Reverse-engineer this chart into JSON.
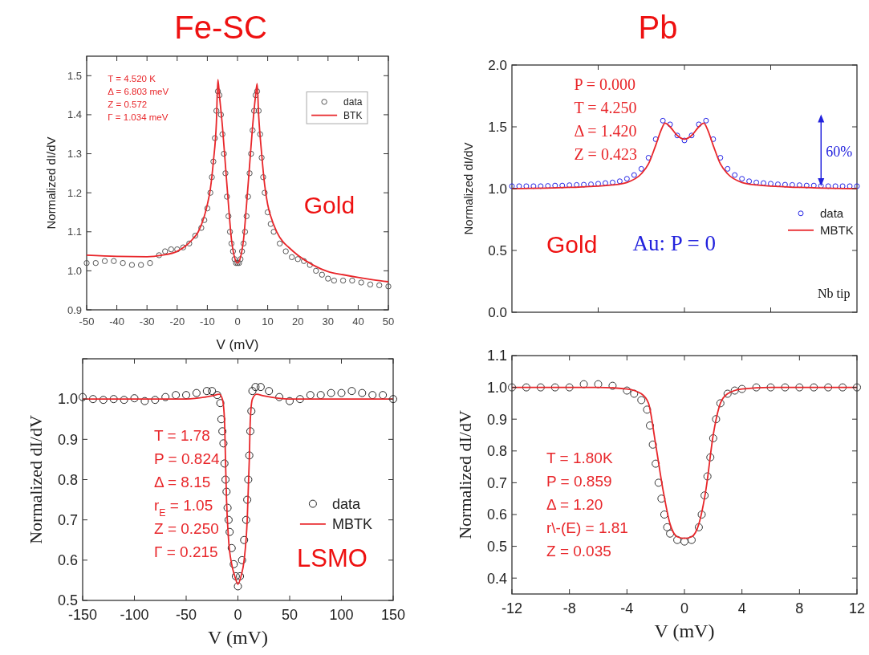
{
  "chart_data": [
    {
      "type": "scatter",
      "title": "Fe-SC",
      "xlabel": "V (mV)",
      "ylabel": "Normalized dI/dV",
      "xlim": [
        -50,
        50
      ],
      "ylim": [
        0.9,
        1.55
      ],
      "xticks": [
        -50,
        -40,
        -30,
        -20,
        -10,
        0,
        10,
        20,
        30,
        40,
        50
      ],
      "yticks": [
        0.9,
        {
          "value": 1,
          "label": "1.0"
        },
        1.1,
        1.2,
        1.3,
        1.4,
        1.5
      ],
      "legend": "top right",
      "annotations": [
        "T =   4.520 K\nΔ =   6.803 meV\nZ =   0.572\nΓ =   1.034 meV",
        "Gold"
      ],
      "series": [
        {
          "name": "data",
          "marker": "circle",
          "color": "#555555",
          "x": [
            -50,
            -47,
            -44,
            -41,
            -38,
            -35,
            -32,
            -29,
            -26,
            -24,
            -22,
            -20,
            -18,
            -16,
            -14,
            -12,
            -11,
            -10,
            -9,
            -8.5,
            -8,
            -7.5,
            -7,
            -6.5,
            -6,
            -5.5,
            -5,
            -4.5,
            -4,
            -3.5,
            -3,
            -2.5,
            -2,
            -1.5,
            -1,
            -0.5,
            0,
            0.5,
            1,
            1.5,
            2,
            2.5,
            3,
            3.5,
            4,
            4.5,
            5,
            5.5,
            6,
            6.5,
            7,
            7.5,
            8,
            8.5,
            9,
            10,
            11,
            12,
            14,
            16,
            18,
            20,
            22,
            24,
            26,
            28,
            30,
            32,
            35,
            38,
            41,
            44,
            47,
            50
          ],
          "values": [
            1.02,
            1.02,
            1.025,
            1.025,
            1.02,
            1.015,
            1.015,
            1.02,
            1.04,
            1.05,
            1.055,
            1.055,
            1.06,
            1.07,
            1.09,
            1.11,
            1.13,
            1.16,
            1.2,
            1.24,
            1.28,
            1.34,
            1.41,
            1.46,
            1.45,
            1.4,
            1.35,
            1.3,
            1.25,
            1.19,
            1.14,
            1.1,
            1.07,
            1.05,
            1.03,
            1.02,
            1.02,
            1.02,
            1.03,
            1.05,
            1.07,
            1.1,
            1.14,
            1.19,
            1.25,
            1.3,
            1.36,
            1.41,
            1.45,
            1.46,
            1.41,
            1.35,
            1.29,
            1.24,
            1.2,
            1.15,
            1.12,
            1.1,
            1.07,
            1.05,
            1.035,
            1.03,
            1.025,
            1.015,
            1.0,
            0.99,
            0.98,
            0.975,
            0.975,
            0.975,
            0.97,
            0.965,
            0.963,
            0.96
          ]
        },
        {
          "name": "BTK",
          "type": "line",
          "color": "#e8262a",
          "x": [
            -50,
            -40,
            -30,
            -25,
            -20,
            -17,
            -15,
            -13,
            -11,
            -10,
            -9,
            -8,
            -7,
            -6.5,
            -6,
            -5,
            -4,
            -3,
            -2,
            -1,
            0,
            1,
            2,
            3,
            4,
            5,
            6,
            6.5,
            7,
            8,
            9,
            10,
            11,
            13,
            15,
            17,
            20,
            25,
            30,
            35,
            40,
            45,
            50
          ],
          "values": [
            1.04,
            1.037,
            1.036,
            1.04,
            1.05,
            1.065,
            1.08,
            1.1,
            1.14,
            1.17,
            1.21,
            1.28,
            1.38,
            1.49,
            1.45,
            1.37,
            1.27,
            1.17,
            1.08,
            1.035,
            1.02,
            1.035,
            1.08,
            1.17,
            1.27,
            1.37,
            1.45,
            1.48,
            1.4,
            1.3,
            1.22,
            1.17,
            1.14,
            1.1,
            1.075,
            1.06,
            1.04,
            1.015,
            0.998,
            0.99,
            0.983,
            0.977,
            0.972
          ]
        }
      ]
    },
    {
      "type": "scatter",
      "title": "Pb",
      "ylabel": "Normalized dI/dV",
      "xlim": [
        -12,
        12
      ],
      "ylim": [
        0,
        2
      ],
      "xticks": [
        {
          "value": -6,
          "label": null
        },
        {
          "value": 0,
          "label": null
        },
        {
          "value": 6,
          "label": null
        }
      ],
      "yticks": [
        {
          "value": 0,
          "label": "0.0"
        },
        0.5,
        {
          "value": 1,
          "label": "1.0"
        },
        1.5,
        {
          "value": 2,
          "label": "2.0"
        }
      ],
      "tick_labels": "y",
      "legend": "right",
      "annotations": [
        "P = 0.000\nT = 4.250\nΔ = 1.420\nZ = 0.423",
        "Gold",
        "Au: P = 0",
        "Nb tip",
        "60%"
      ],
      "series": [
        {
          "name": "data",
          "marker": "circle",
          "color": "#2626e6",
          "x": [
            -12,
            -11.5,
            -11,
            -10.5,
            -10,
            -9.5,
            -9,
            -8.5,
            -8,
            -7.5,
            -7,
            -6.5,
            -6,
            -5.5,
            -5,
            -4.5,
            -4,
            -3.5,
            -3,
            -2.5,
            -2,
            -1.5,
            -1,
            -0.5,
            0,
            0.5,
            1,
            1.5,
            2,
            2.5,
            3,
            3.5,
            4,
            4.5,
            5,
            5.5,
            6,
            6.5,
            7,
            7.5,
            8,
            8.5,
            9,
            9.5,
            10,
            10.5,
            11,
            11.5,
            12
          ],
          "values": [
            1.02,
            1.02,
            1.02,
            1.02,
            1.02,
            1.022,
            1.025,
            1.025,
            1.028,
            1.03,
            1.032,
            1.035,
            1.04,
            1.045,
            1.05,
            1.06,
            1.08,
            1.11,
            1.16,
            1.25,
            1.4,
            1.55,
            1.52,
            1.43,
            1.39,
            1.43,
            1.52,
            1.55,
            1.4,
            1.25,
            1.16,
            1.11,
            1.08,
            1.06,
            1.05,
            1.045,
            1.04,
            1.035,
            1.032,
            1.03,
            1.028,
            1.025,
            1.025,
            1.022,
            1.02,
            1.02,
            1.02,
            1.02,
            1.02
          ]
        },
        {
          "name": "MBTK",
          "type": "line",
          "color": "#e8262a",
          "x": [
            -12,
            -8,
            -5,
            -4,
            -3,
            -2.5,
            -2,
            -1.6,
            -1.35,
            -1,
            -0.5,
            0,
            0.5,
            1,
            1.35,
            1.6,
            2,
            2.5,
            3,
            4,
            5,
            8,
            12
          ],
          "values": [
            1.0,
            1.01,
            1.03,
            1.05,
            1.12,
            1.2,
            1.35,
            1.48,
            1.53,
            1.5,
            1.43,
            1.4,
            1.43,
            1.5,
            1.53,
            1.48,
            1.35,
            1.2,
            1.12,
            1.05,
            1.03,
            1.01,
            1.0
          ]
        }
      ]
    },
    {
      "type": "scatter",
      "xlabel": "V (mV)",
      "ylabel": "Normalized dI/dV",
      "xlim": [
        -150,
        150
      ],
      "ylim": [
        0.5,
        1.1
      ],
      "xticks": [
        -150,
        -100,
        -50,
        0,
        50,
        100,
        150
      ],
      "yticks": [
        0.5,
        0.6,
        0.7,
        0.8,
        0.9,
        {
          "value": 1,
          "label": "1.0"
        },
        {
          "value": 1.1,
          "label": null
        }
      ],
      "legend": "right",
      "annotations": [
        "T = 1.78\nP = 0.824\nΔ = 8.15\nr$_{E}$ = 1.05\nZ = 0.250\nΓ = 0.215",
        "LSMO"
      ],
      "series": [
        {
          "name": "data",
          "marker": "circle",
          "color": "#222222",
          "x": [
            -150,
            -140,
            -130,
            -120,
            -110,
            -100,
            -90,
            -80,
            -70,
            -60,
            -50,
            -40,
            -30,
            -25,
            -20,
            -17,
            -16,
            -15,
            -14,
            -13,
            -12,
            -11,
            -10,
            -9,
            -8,
            -6,
            -4,
            -2,
            0,
            2,
            4,
            6,
            8,
            9,
            10,
            11,
            12,
            13,
            14,
            17,
            22,
            30,
            40,
            50,
            60,
            70,
            80,
            90,
            100,
            110,
            120,
            130,
            140,
            150
          ],
          "values": [
            1.005,
            1.0,
            0.998,
            1.0,
            0.998,
            1.002,
            0.995,
            0.998,
            1.005,
            1.01,
            1.01,
            1.015,
            1.02,
            1.02,
            1.01,
            0.99,
            0.95,
            0.92,
            0.89,
            0.84,
            0.8,
            0.77,
            0.73,
            0.7,
            0.67,
            0.63,
            0.59,
            0.56,
            0.535,
            0.56,
            0.6,
            0.65,
            0.7,
            0.75,
            0.8,
            0.86,
            0.92,
            0.97,
            1.02,
            1.03,
            1.03,
            1.02,
            1.005,
            0.995,
            1.0,
            1.01,
            1.01,
            1.015,
            1.015,
            1.02,
            1.015,
            1.01,
            1.01,
            1.0
          ]
        },
        {
          "name": "MBTK",
          "type": "line",
          "color": "#e8262a",
          "x": [
            -150,
            -50,
            -25,
            -18,
            -15,
            -13,
            -12,
            -11,
            -9,
            -6,
            -3,
            0,
            3,
            6,
            9,
            11,
            12,
            14,
            18,
            25,
            50,
            150
          ],
          "values": [
            1.0,
            1.0,
            1.008,
            1.012,
            1.0,
            0.95,
            0.85,
            0.75,
            0.65,
            0.59,
            0.56,
            0.54,
            0.56,
            0.6,
            0.7,
            0.85,
            0.95,
            1.0,
            1.012,
            1.008,
            1.0,
            1.0
          ]
        }
      ]
    },
    {
      "type": "scatter",
      "xlabel": "V (mV)",
      "ylabel": "Normalized dI/dV",
      "xlim": [
        -12,
        12
      ],
      "ylim": [
        0.35,
        1.1
      ],
      "xticks": [
        -12,
        -8,
        -4,
        0,
        4,
        8,
        12
      ],
      "yticks": [
        0.4,
        0.5,
        0.6,
        0.7,
        0.8,
        0.9,
        {
          "value": 1,
          "label": "1.0"
        },
        1.1
      ],
      "annotations": [
        "T = 1.80K\nP = 0.859\nΔ = 1.20\nr\\-(E) = 1.81\nZ = 0.035"
      ],
      "series": [
        {
          "marker": "circle",
          "color": "#333333",
          "x": [
            -12,
            -11,
            -10,
            -9,
            -8,
            -7,
            -6,
            -5,
            -4,
            -3.5,
            -3,
            -2.6,
            -2.4,
            -2.2,
            -2,
            -1.8,
            -1.6,
            -1.4,
            -1.2,
            -1,
            -0.5,
            0,
            0.5,
            1,
            1.2,
            1.4,
            1.6,
            1.8,
            2,
            2.2,
            2.5,
            3,
            3.5,
            4,
            5,
            6,
            7,
            8,
            9,
            10,
            11,
            12
          ],
          "values": [
            1.0,
            1.0,
            1.0,
            1.0,
            1.0,
            1.01,
            1.01,
            1.005,
            0.99,
            0.98,
            0.96,
            0.93,
            0.88,
            0.82,
            0.76,
            0.7,
            0.65,
            0.6,
            0.56,
            0.54,
            0.52,
            0.515,
            0.52,
            0.56,
            0.6,
            0.66,
            0.72,
            0.78,
            0.84,
            0.9,
            0.95,
            0.98,
            0.99,
            0.995,
            1.0,
            1.0,
            1.0,
            1.0,
            1.0,
            1.0,
            1.0,
            1.0
          ]
        },
        {
          "type": "line",
          "color": "#e8262a",
          "x": [
            -12,
            -6,
            -4,
            -3,
            -2.5,
            -2,
            -1.5,
            -1,
            -0.5,
            0,
            0.5,
            1,
            1.5,
            2,
            2.5,
            3,
            4,
            6,
            12
          ],
          "values": [
            1.0,
            1.0,
            0.995,
            0.98,
            0.95,
            0.82,
            0.68,
            0.57,
            0.53,
            0.525,
            0.53,
            0.57,
            0.68,
            0.85,
            0.95,
            0.98,
            0.995,
            1.0,
            1.0
          ]
        }
      ]
    }
  ]
}
